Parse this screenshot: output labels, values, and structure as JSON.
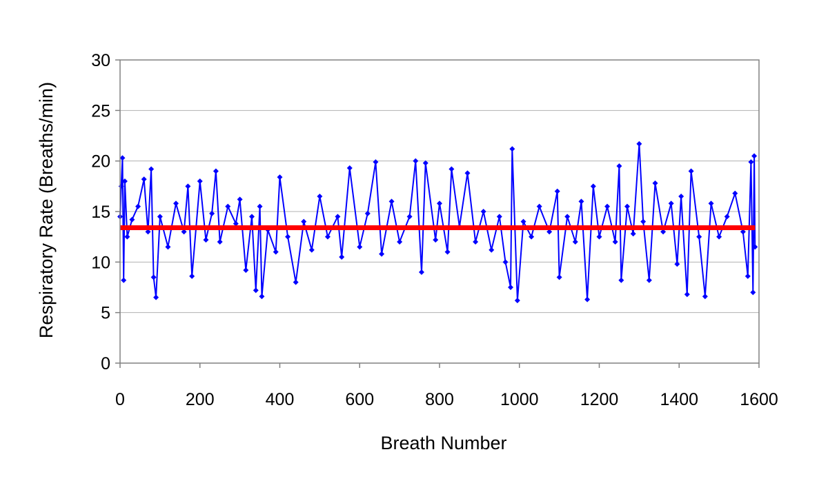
{
  "chart_data": {
    "type": "line",
    "xlabel": "Breath Number",
    "ylabel": "Respiratory Rate (Breaths/min)",
    "xlim": [
      0,
      1600
    ],
    "ylim": [
      0,
      30
    ],
    "xticks": [
      0,
      200,
      400,
      600,
      800,
      1000,
      1200,
      1400,
      1600
    ],
    "yticks": [
      0,
      5,
      10,
      15,
      20,
      25,
      30
    ],
    "grid": "horizontal",
    "legend": "none",
    "series": [
      {
        "color": "#0000ff",
        "marker": "diamond",
        "x": [
          0,
          3,
          6,
          9,
          12,
          18,
          30,
          45,
          60,
          70,
          78,
          84,
          90,
          100,
          120,
          140,
          160,
          170,
          180,
          200,
          215,
          230,
          240,
          250,
          270,
          290,
          300,
          315,
          330,
          340,
          350,
          355,
          370,
          390,
          400,
          420,
          440,
          460,
          480,
          500,
          520,
          545,
          555,
          575,
          600,
          620,
          640,
          655,
          680,
          700,
          725,
          740,
          755,
          765,
          790,
          800,
          820,
          830,
          850,
          870,
          890,
          910,
          930,
          950,
          965,
          978,
          982,
          995,
          1010,
          1030,
          1050,
          1075,
          1095,
          1100,
          1120,
          1140,
          1155,
          1170,
          1185,
          1200,
          1220,
          1240,
          1250,
          1255,
          1270,
          1285,
          1300,
          1310,
          1325,
          1340,
          1360,
          1380,
          1395,
          1405,
          1420,
          1430,
          1450,
          1465,
          1480,
          1500,
          1520,
          1540,
          1560,
          1572,
          1580,
          1585,
          1588,
          1590
        ],
        "y": [
          14.5,
          17.5,
          20.3,
          8.2,
          18.0,
          12.5,
          14.2,
          15.5,
          18.2,
          13.0,
          19.2,
          8.5,
          6.5,
          14.5,
          11.5,
          15.8,
          13.0,
          17.5,
          8.6,
          18.0,
          12.2,
          14.8,
          19.0,
          12.0,
          15.5,
          13.8,
          16.2,
          9.2,
          14.5,
          7.2,
          15.5,
          6.6,
          13.2,
          11.0,
          18.4,
          12.5,
          8.0,
          14.0,
          11.2,
          16.5,
          12.5,
          14.5,
          10.5,
          19.3,
          11.5,
          14.8,
          19.9,
          10.8,
          16.0,
          12.0,
          14.5,
          20.0,
          9.0,
          19.8,
          12.2,
          15.8,
          11.0,
          19.2,
          13.5,
          18.8,
          12.0,
          15.0,
          11.2,
          14.5,
          10.0,
          7.5,
          21.2,
          6.2,
          14.0,
          12.5,
          15.5,
          13.0,
          17.0,
          8.5,
          14.5,
          12.0,
          16.0,
          6.3,
          17.5,
          12.5,
          15.5,
          12.0,
          19.5,
          8.2,
          15.5,
          12.8,
          21.7,
          14.0,
          8.2,
          17.8,
          13.0,
          15.8,
          9.8,
          16.5,
          6.8,
          19.0,
          12.5,
          6.6,
          15.8,
          12.5,
          14.5,
          16.8,
          13.0,
          8.6,
          19.9,
          7.0,
          20.5,
          11.5
        ]
      },
      {
        "color": "#ff0000",
        "x": [
          0,
          1590
        ],
        "y": [
          13.4,
          13.4
        ]
      }
    ]
  }
}
